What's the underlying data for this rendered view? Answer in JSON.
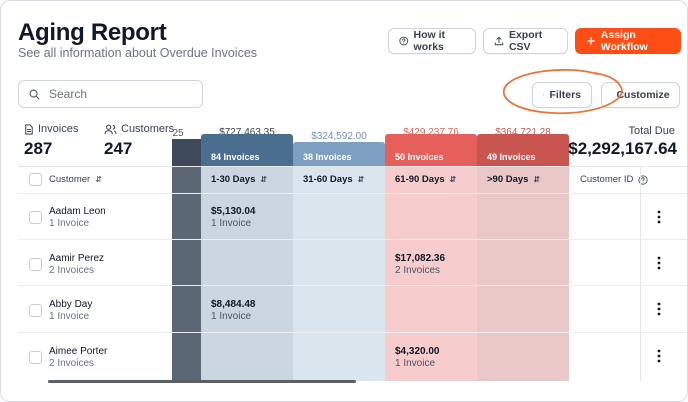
{
  "header": {
    "title": "Aging Report",
    "subtitle": "See all information about Overdue Invoices"
  },
  "toolbar": {
    "how_label": "How it works",
    "export_label": "Export CSV",
    "assign_label": "Assign Workflow",
    "filters_label": "Filters",
    "customize_label": "Customize"
  },
  "search": {
    "placeholder": "Search",
    "value": ""
  },
  "stats": {
    "invoices_label": "Invoices",
    "invoices_value": "287",
    "customers_label": "Customers",
    "customers_value": "247",
    "total_due_label": "Total Due",
    "total_due_value": "$2,292,167.64"
  },
  "bands": {
    "current": {
      "amount": "25",
      "invoices": ""
    },
    "b1_30": {
      "amount": "$727,463.35",
      "invoices": "84 Invoices"
    },
    "b31_60": {
      "amount": "$324,592.00",
      "invoices": "38 Invoices"
    },
    "b61_90": {
      "amount": "$429,237.76",
      "invoices": "50 Invoices"
    },
    "b90": {
      "amount": "$364,721.28",
      "invoices": "49 Invoices"
    }
  },
  "columns": {
    "customer": "Customer",
    "d1_30": "1-30 Days",
    "d31_60": "31-60 Days",
    "d61_90": "61-90 Days",
    "d90": ">90 Days",
    "customer_id": "Customer ID"
  },
  "rows": [
    {
      "name": "Aadam Leon",
      "invoices": "1 Invoice",
      "d1_30": "$5,130.04",
      "d1_30_sub": "1 Invoice",
      "d61_90": "",
      "d61_90_sub": ""
    },
    {
      "name": "Aamir Perez",
      "invoices": "2 Invoices",
      "d1_30": "",
      "d1_30_sub": "",
      "d61_90": "$17,082.36",
      "d61_90_sub": "2 Invoices"
    },
    {
      "name": "Abby Day",
      "invoices": "1 Invoice",
      "d1_30": "$8,484.48",
      "d1_30_sub": "1 Invoice",
      "d61_90": "",
      "d61_90_sub": ""
    },
    {
      "name": "Aimee Porter",
      "invoices": "2 Invoices",
      "d1_30": "",
      "d1_30_sub": "",
      "d61_90": "$4,320.00",
      "d61_90_sub": "1 Invoice"
    }
  ],
  "colors": {
    "accent": "#ff4d16",
    "annotation": "#e8763a",
    "band_current": "#3e4a5c",
    "band_1_30": "#4a6f8e",
    "band_31_60": "#7d9fc0",
    "band_61_90": "#e5605b",
    "band_90": "#c85550"
  }
}
